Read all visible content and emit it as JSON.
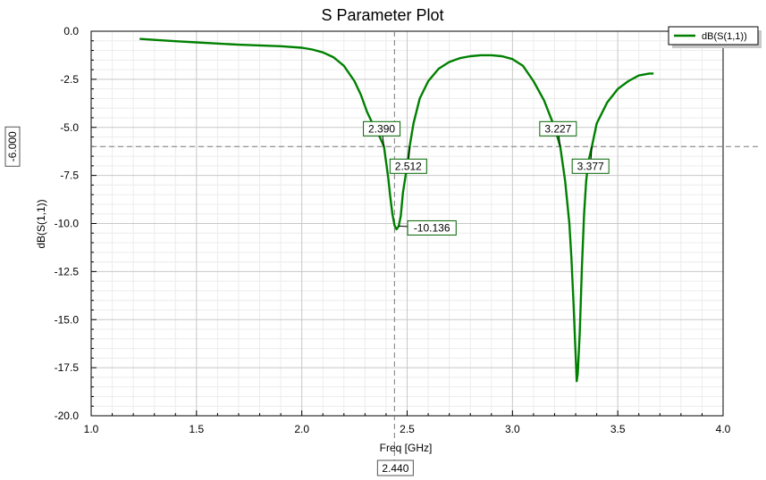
{
  "chart_data": {
    "type": "line",
    "title": "S Parameter Plot",
    "xlabel": "Freq [GHz]",
    "ylabel": "dB(S(1,1))",
    "xlim": [
      1.0,
      4.0
    ],
    "ylim": [
      -20.0,
      0.0
    ],
    "x_ticks": [
      "1.0",
      "1.5",
      "2.0",
      "2.5",
      "3.0",
      "3.5",
      "4.0"
    ],
    "y_ticks": [
      "0.0",
      "-2.5",
      "-5.0",
      "-7.5",
      "-10.0",
      "-12.5",
      "-15.0",
      "-17.5",
      "-20.0"
    ],
    "grid": true,
    "minor_grid": true,
    "legend_position": "top-right",
    "series": [
      {
        "name": "dB(S(1,1))",
        "color": "#008000",
        "x": [
          1.23,
          1.3,
          1.4,
          1.5,
          1.6,
          1.7,
          1.8,
          1.9,
          2.0,
          2.05,
          2.1,
          2.15,
          2.2,
          2.25,
          2.28,
          2.31,
          2.34,
          2.37,
          2.39,
          2.41,
          2.42,
          2.43,
          2.44,
          2.45,
          2.46,
          2.47,
          2.48,
          2.5,
          2.512,
          2.53,
          2.56,
          2.6,
          2.65,
          2.7,
          2.75,
          2.8,
          2.85,
          2.9,
          2.95,
          3.0,
          3.05,
          3.1,
          3.15,
          3.2,
          3.227,
          3.25,
          3.27,
          3.28,
          3.29,
          3.3,
          3.305,
          3.31,
          3.32,
          3.33,
          3.34,
          3.35,
          3.36,
          3.377,
          3.4,
          3.45,
          3.5,
          3.55,
          3.6,
          3.65,
          3.67
        ],
        "y": [
          -0.4,
          -0.45,
          -0.52,
          -0.58,
          -0.64,
          -0.7,
          -0.74,
          -0.78,
          -0.86,
          -0.95,
          -1.1,
          -1.35,
          -1.8,
          -2.6,
          -3.3,
          -4.2,
          -4.9,
          -5.5,
          -6.0,
          -7.6,
          -8.6,
          -9.5,
          -10.1,
          -10.3,
          -10.136,
          -9.6,
          -8.4,
          -7.0,
          -6.0,
          -4.8,
          -3.5,
          -2.6,
          -1.95,
          -1.6,
          -1.4,
          -1.3,
          -1.25,
          -1.25,
          -1.3,
          -1.45,
          -1.8,
          -2.6,
          -3.6,
          -5.0,
          -6.0,
          -7.8,
          -10.0,
          -11.8,
          -14.2,
          -16.8,
          -18.2,
          -17.8,
          -15.6,
          -12.2,
          -9.5,
          -7.8,
          -6.8,
          -6.0,
          -4.8,
          -3.7,
          -3.0,
          -2.6,
          -2.3,
          -2.2,
          -2.2
        ]
      }
    ],
    "reference_lines": {
      "horizontal": {
        "y": -6.0,
        "label": "-6.000"
      },
      "vertical": {
        "x": 2.44,
        "label": "2.440"
      }
    },
    "markers": [
      {
        "x": 2.39,
        "y": -6.0,
        "label": "2.390",
        "anchor": "above-left"
      },
      {
        "x": 2.512,
        "y": -6.0,
        "label": "2.512",
        "anchor": "below"
      },
      {
        "x": 2.46,
        "y": -10.136,
        "label": "-10.136",
        "anchor": "right"
      },
      {
        "x": 3.227,
        "y": -6.0,
        "label": "3.227",
        "anchor": "above-left"
      },
      {
        "x": 3.377,
        "y": -6.0,
        "label": "3.377",
        "anchor": "below"
      }
    ]
  }
}
